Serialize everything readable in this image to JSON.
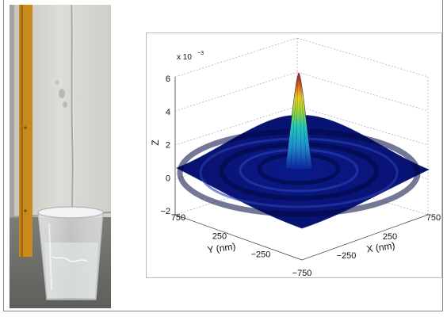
{
  "photo": {
    "subject": "glass beaker under a falling liquid jet beside an upright wooden ruler"
  },
  "colors": {
    "surface_low": "#0a0f6e",
    "surface_mid": "#1fc4c4",
    "surface_high": "#b01010",
    "ruler": "#c98a1c",
    "wall": "#d6d5cf"
  },
  "chart_data": {
    "type": "surface3d",
    "title": "",
    "xlabel": "X (nm)",
    "ylabel": "Y (nm)",
    "zlabel": "Z",
    "z_exponent_base": "x 10",
    "z_exponent_power": "−3",
    "x_ticks": [
      "−250",
      "250",
      "750"
    ],
    "y_ticks": [
      "750",
      "250",
      "−250",
      "−750"
    ],
    "z_ticks": [
      "6",
      "4",
      "2",
      "0",
      "−2"
    ],
    "xlim": [
      -750,
      750
    ],
    "ylim": [
      -750,
      750
    ],
    "zlim": [
      -0.002,
      0.006
    ],
    "zlim_display": [
      -2,
      6
    ],
    "peak": {
      "x": 0,
      "y": 0,
      "z": 0.0063
    },
    "rings": [
      {
        "radius_nm": 190,
        "z": -0.0004
      },
      {
        "radius_nm": 390,
        "z": 0.0002
      },
      {
        "radius_nm": 590,
        "z": -0.0001
      }
    ],
    "grid": true,
    "colormap": "jet"
  }
}
